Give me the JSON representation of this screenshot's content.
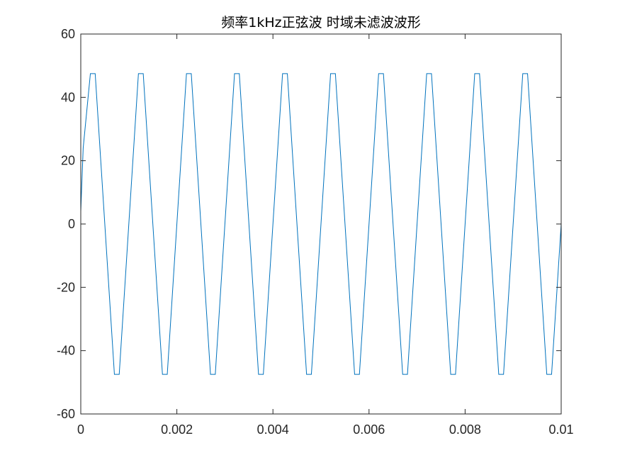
{
  "chart_data": {
    "type": "line",
    "title": "频率1kHz正弦波 时域未滤波波形",
    "xlabel": "",
    "ylabel": "",
    "xlim": [
      0,
      0.01
    ],
    "ylim": [
      -60,
      60
    ],
    "x_ticks": [
      0,
      0.002,
      0.004,
      0.006,
      0.008,
      0.01
    ],
    "x_tick_labels": [
      "0",
      "0.002",
      "0.004",
      "0.006",
      "0.008",
      "0.01"
    ],
    "y_ticks": [
      -60,
      -40,
      -20,
      0,
      20,
      40,
      60
    ],
    "y_tick_labels": [
      "-60",
      "-40",
      "-20",
      "0",
      "20",
      "40",
      "60"
    ],
    "grid": false,
    "line_color": "#0072BD",
    "series": [
      {
        "x": [
          0,
          5e-05,
          0.0002,
          0.0003,
          0.0007,
          0.0008,
          0.0012,
          0.0013,
          0.0017,
          0.0018,
          0.0022,
          0.0023,
          0.0027,
          0.0028,
          0.0032,
          0.0033,
          0.0037,
          0.0038,
          0.0042,
          0.0043,
          0.0047,
          0.0048,
          0.0052,
          0.0053,
          0.0057,
          0.0058,
          0.0062,
          0.0063,
          0.0067,
          0.0068,
          0.0072,
          0.0073,
          0.0077,
          0.0078,
          0.0082,
          0.0083,
          0.0087,
          0.0088,
          0.0092,
          0.0093,
          0.0097,
          0.0098,
          0.01
        ],
        "values": [
          4,
          24,
          47.5,
          47.5,
          -47.5,
          -47.5,
          47.5,
          47.5,
          -47.5,
          -47.5,
          47.5,
          47.5,
          -47.5,
          -47.5,
          47.5,
          47.5,
          -47.5,
          -47.5,
          47.5,
          47.5,
          -47.5,
          -47.5,
          47.5,
          47.5,
          -47.5,
          -47.5,
          47.5,
          47.5,
          -47.5,
          -47.5,
          47.5,
          47.5,
          -47.5,
          -47.5,
          47.5,
          47.5,
          -47.5,
          -47.5,
          47.5,
          47.5,
          -47.5,
          -47.5,
          0
        ]
      }
    ]
  }
}
